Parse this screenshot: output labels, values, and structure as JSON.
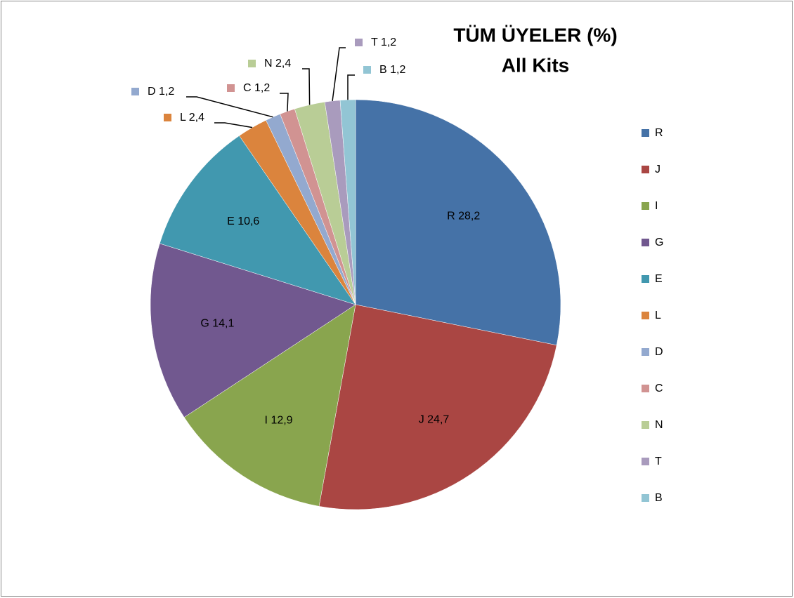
{
  "chart_data": {
    "type": "pie",
    "title": "TÜM ÜYELER (%)",
    "subtitle": "All Kits",
    "categories": [
      "R",
      "J",
      "I",
      "G",
      "E",
      "L",
      "D",
      "C",
      "N",
      "T",
      "B"
    ],
    "values": [
      28.2,
      24.7,
      12.9,
      14.1,
      10.6,
      2.4,
      1.2,
      1.2,
      2.4,
      1.2,
      1.2
    ],
    "value_labels": [
      "28,2",
      "24,7",
      "12,9",
      "14,1",
      "10,6",
      "2,4",
      "1,2",
      "1,2",
      "2,4",
      "1,2",
      "1,2"
    ],
    "colors": [
      "#4572a7",
      "#aa4643",
      "#89a54e",
      "#71588f",
      "#4198af",
      "#db843d",
      "#93a9cf",
      "#d19392",
      "#b9cd96",
      "#a99bbd",
      "#92c5d4"
    ],
    "legend": "right"
  }
}
